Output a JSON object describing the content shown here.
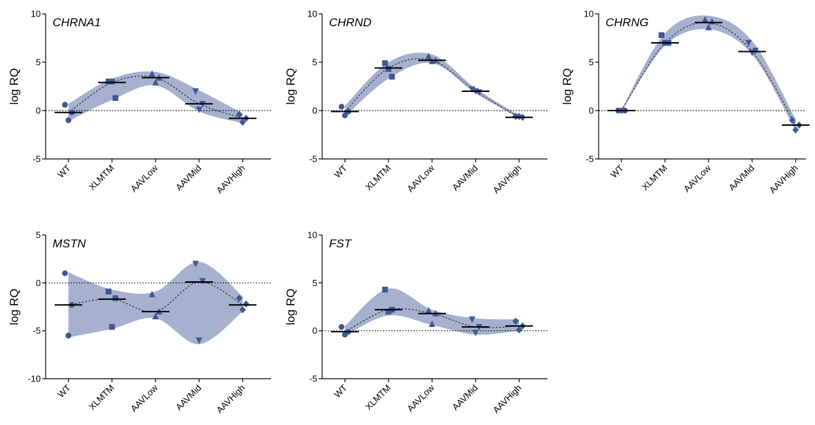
{
  "chart_data": [
    {
      "type": "scatter",
      "title": "CHRNA1",
      "ylabel": "log RQ",
      "categories": [
        "WT",
        "XLMTM",
        "AAVLow",
        "AAVMid",
        "AAVHigh"
      ],
      "ylim": [
        -5,
        10
      ],
      "yticks": [
        "-5",
        "0",
        "5",
        "10"
      ],
      "groups": [
        {
          "points": [
            0.6,
            -1.0,
            -0.2
          ],
          "mean": -0.2
        },
        {
          "points": [
            3.0,
            3.0,
            1.3
          ],
          "mean": 2.9
        },
        {
          "points": [
            3.8,
            2.9,
            3.4
          ],
          "mean": 3.4
        },
        {
          "points": [
            2.0,
            0.1,
            0.7
          ],
          "mean": 0.7
        },
        {
          "points": [
            -0.4,
            -1.2,
            -0.8
          ],
          "mean": -0.8
        }
      ],
      "band": [
        [
          -1.1,
          0.7
        ],
        [
          1.1,
          3.3
        ],
        [
          2.6,
          4.0
        ],
        [
          -0.1,
          2.1
        ],
        [
          -1.3,
          -0.3
        ]
      ],
      "colors": {
        "marker": "#3f5896",
        "band": "#a5b1ce"
      }
    },
    {
      "type": "scatter",
      "title": "CHRND",
      "ylabel": "log RQ",
      "categories": [
        "WT",
        "XLMTM",
        "AAVLow",
        "AAVMid",
        "AAVHigh"
      ],
      "ylim": [
        -5,
        10
      ],
      "yticks": [
        "-5",
        "0",
        "5",
        "10"
      ],
      "groups": [
        {
          "points": [
            0.4,
            -0.5,
            -0.1
          ],
          "mean": -0.1
        },
        {
          "points": [
            4.9,
            4.3,
            3.5
          ],
          "mean": 4.4
        },
        {
          "points": [
            5.6,
            5.1,
            5.2
          ],
          "mean": 5.2
        },
        {
          "points": [
            2.2,
            2.0,
            1.9
          ],
          "mean": 2.0
        },
        {
          "points": [
            -0.6,
            -0.6,
            -0.7
          ],
          "mean": -0.7
        }
      ],
      "band": [
        [
          -0.6,
          0.5
        ],
        [
          3.3,
          5.0
        ],
        [
          4.9,
          5.8
        ],
        [
          1.8,
          2.3
        ],
        [
          -0.8,
          -0.5
        ]
      ],
      "colors": {
        "marker": "#3f5896",
        "band": "#a5b1ce"
      }
    },
    {
      "type": "scatter",
      "title": "CHRNG",
      "ylabel": "log RQ",
      "categories": [
        "WT",
        "XLMTM",
        "AAVLow",
        "AAVMid",
        "AAVHigh"
      ],
      "ylim": [
        -5,
        10
      ],
      "yticks": [
        "-5",
        "0",
        "5",
        "10"
      ],
      "groups": [
        {
          "points": [
            0.0,
            0.0,
            0.0
          ],
          "mean": 0.0
        },
        {
          "points": [
            7.8,
            7.0,
            7.0
          ],
          "mean": 7.0
        },
        {
          "points": [
            9.4,
            8.6,
            9.2
          ],
          "mean": 9.1
        },
        {
          "points": [
            7.0,
            6.0,
            6.2
          ],
          "mean": 6.1
        },
        {
          "points": [
            -1.0,
            -2.0,
            -1.5
          ],
          "mean": -1.5
        }
      ],
      "band": [
        [
          -0.1,
          0.1
        ],
        [
          6.7,
          8.0
        ],
        [
          8.4,
          9.8
        ],
        [
          5.8,
          7.2
        ],
        [
          -2.1,
          -0.9
        ]
      ],
      "colors": {
        "marker": "#3f5896",
        "band": "#a5b1ce"
      }
    },
    {
      "type": "scatter",
      "title": "MSTN",
      "ylabel": "log RQ",
      "categories": [
        "WT",
        "XLMTM",
        "AAVLow",
        "AAVMid",
        "AAVHigh"
      ],
      "ylim": [
        -10,
        5
      ],
      "yticks": [
        "-10",
        "-5",
        "0",
        "5"
      ],
      "groups": [
        {
          "points": [
            1.0,
            -5.5,
            -2.3
          ],
          "mean": -2.3
        },
        {
          "points": [
            -0.9,
            -4.6,
            -1.6
          ],
          "mean": -1.7
        },
        {
          "points": [
            -1.2,
            -3.5,
            -3.0
          ],
          "mean": -3.0
        },
        {
          "points": [
            2.0,
            -6.0,
            0.2
          ],
          "mean": 0.1
        },
        {
          "points": [
            -1.6,
            -2.8,
            -2.2
          ],
          "mean": -2.3
        }
      ],
      "band": [
        [
          -5.7,
          1.1
        ],
        [
          -4.8,
          -0.7
        ],
        [
          -3.7,
          -0.9
        ],
        [
          -6.4,
          2.2
        ],
        [
          -3.0,
          -1.4
        ]
      ],
      "colors": {
        "marker": "#3f5896",
        "band": "#a5b1ce"
      }
    },
    {
      "type": "scatter",
      "title": "FST",
      "ylabel": "log RQ",
      "categories": [
        "WT",
        "XLMTM",
        "AAVLow",
        "AAVMid",
        "AAVHigh"
      ],
      "ylim": [
        -5,
        10
      ],
      "yticks": [
        "-5",
        "0",
        "5",
        "10"
      ],
      "groups": [
        {
          "points": [
            0.4,
            -0.4,
            -0.1
          ],
          "mean": -0.1
        },
        {
          "points": [
            4.3,
            2.0,
            2.2
          ],
          "mean": 2.2
        },
        {
          "points": [
            2.1,
            0.7,
            1.8
          ],
          "mean": 1.8
        },
        {
          "points": [
            1.2,
            -0.2,
            0.4
          ],
          "mean": 0.4
        },
        {
          "points": [
            1.0,
            0.1,
            0.5
          ],
          "mean": 0.5
        }
      ],
      "band": [
        [
          -0.5,
          0.5
        ],
        [
          1.6,
          4.4
        ],
        [
          0.6,
          2.2
        ],
        [
          -0.4,
          1.3
        ],
        [
          0.0,
          1.2
        ]
      ],
      "colors": {
        "marker": "#3f5896",
        "band": "#a5b1ce"
      }
    }
  ]
}
